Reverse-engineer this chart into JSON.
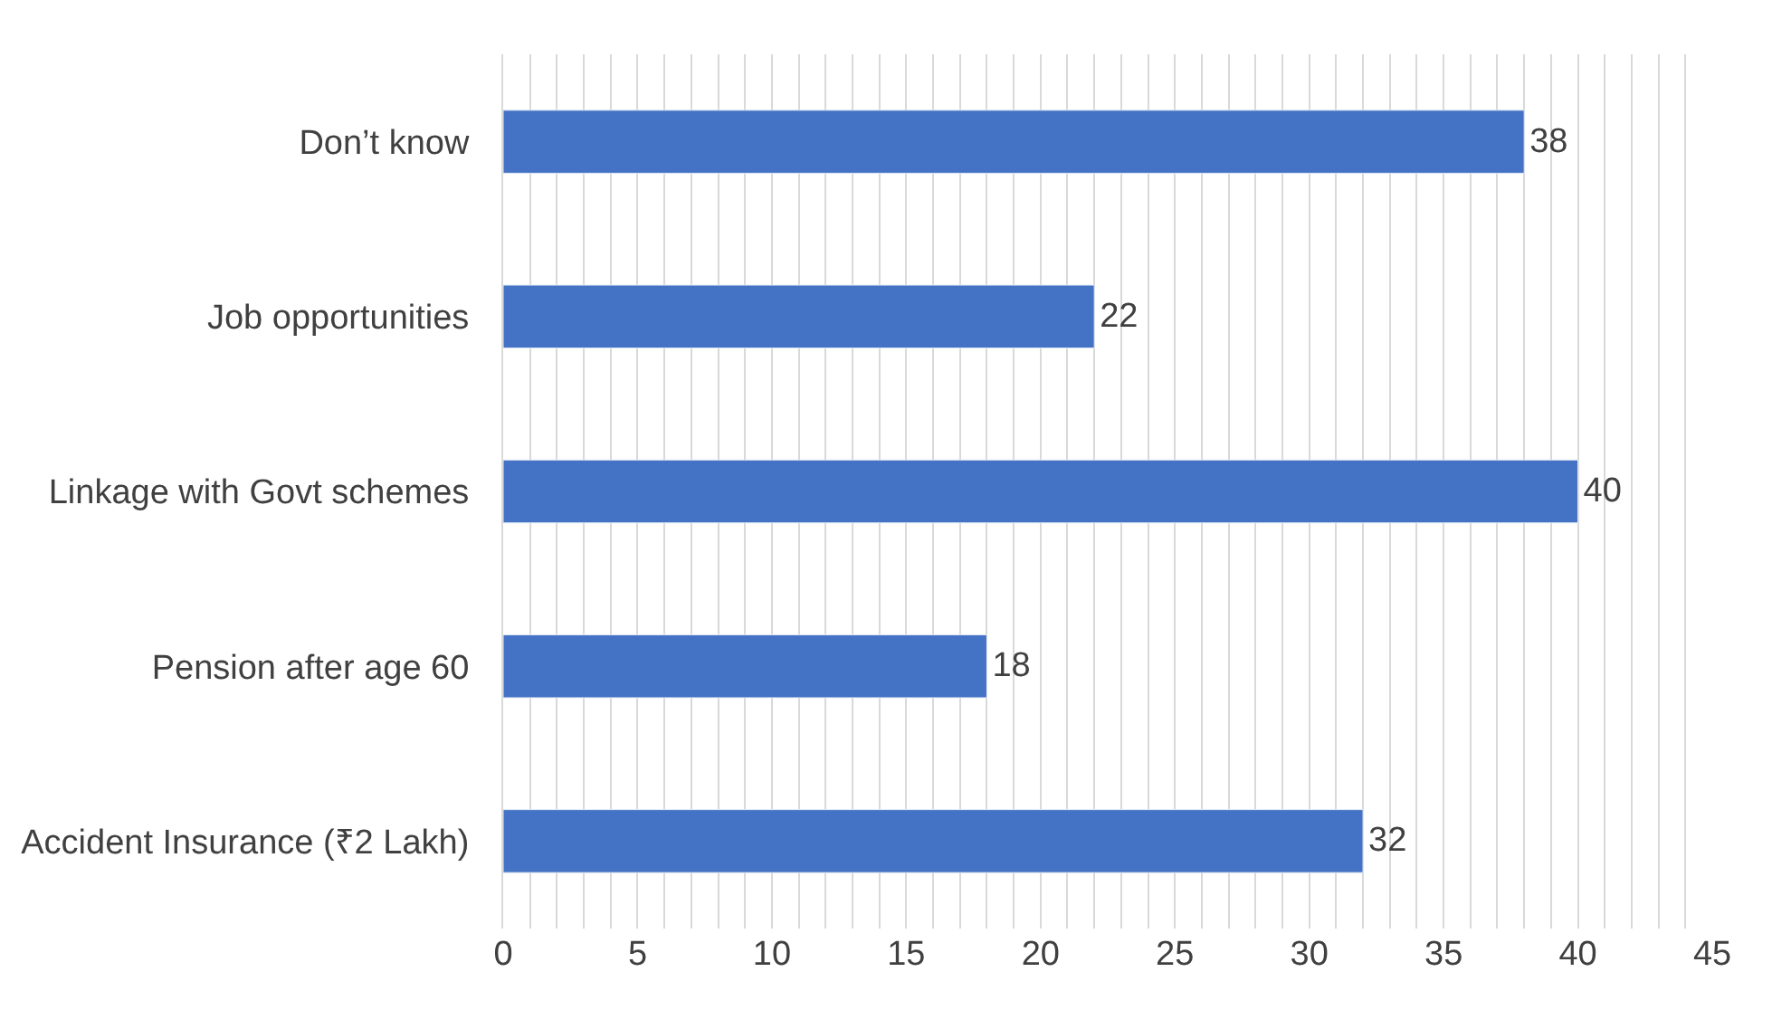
{
  "chart_data": {
    "type": "bar",
    "orientation": "horizontal",
    "categories": [
      "Don’t know",
      "Job opportunities",
      "Linkage with Govt schemes",
      "Pension after age 60",
      "Accident Insurance (₹2 Lakh)"
    ],
    "values": [
      38,
      22,
      40,
      18,
      32
    ],
    "color": "#4472c4",
    "data_labels": true,
    "grid": "x",
    "xlim": [
      0,
      45
    ],
    "xticks": [
      0,
      {
        "value": 1,
        "label": null
      },
      {
        "value": 2,
        "label": null
      },
      {
        "value": 3,
        "label": null
      },
      {
        "value": 4,
        "label": null
      },
      5,
      {
        "value": 6,
        "label": null
      },
      {
        "value": 7,
        "label": null
      },
      {
        "value": 8,
        "label": null
      },
      {
        "value": 9,
        "label": null
      },
      10,
      {
        "value": 11,
        "label": null
      },
      {
        "value": 12,
        "label": null
      },
      {
        "value": 13,
        "label": null
      },
      {
        "value": 14,
        "label": null
      },
      15,
      {
        "value": 16,
        "label": null
      },
      {
        "value": 17,
        "label": null
      },
      {
        "value": 18,
        "label": null
      },
      {
        "value": 19,
        "label": null
      },
      20,
      {
        "value": 21,
        "label": null
      },
      {
        "value": 22,
        "label": null
      },
      {
        "value": 23,
        "label": null
      },
      {
        "value": 24,
        "label": null
      },
      25,
      {
        "value": 26,
        "label": null
      },
      {
        "value": 27,
        "label": null
      },
      {
        "value": 28,
        "label": null
      },
      {
        "value": 29,
        "label": null
      },
      30,
      {
        "value": 31,
        "label": null
      },
      {
        "value": 32,
        "label": null
      },
      {
        "value": 33,
        "label": null
      },
      {
        "value": 34,
        "label": null
      },
      35,
      {
        "value": 36,
        "label": null
      },
      {
        "value": 37,
        "label": null
      },
      {
        "value": 38,
        "label": null
      },
      {
        "value": 39,
        "label": null
      },
      40,
      {
        "value": 41,
        "label": null
      },
      {
        "value": 42,
        "label": null
      },
      {
        "value": 43,
        "label": null
      },
      {
        "value": 44,
        "label": null
      },
      45
    ]
  }
}
